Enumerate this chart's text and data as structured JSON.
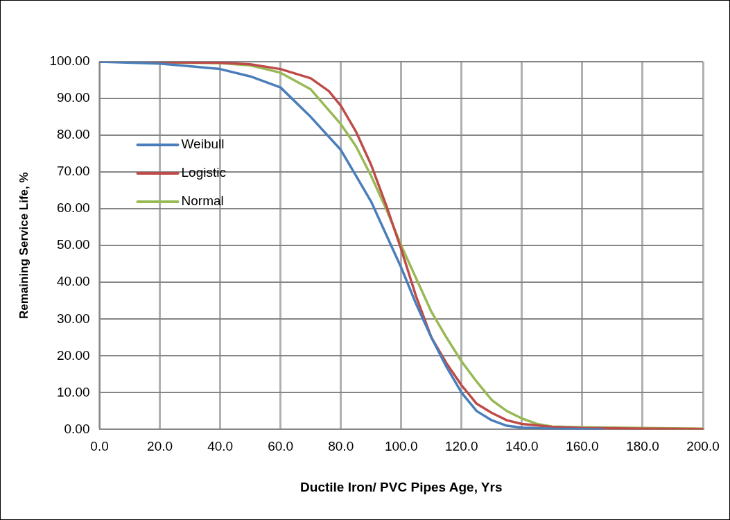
{
  "chart_data": {
    "type": "line",
    "xlabel": "Ductile Iron/ PVC Pipes Age, Yrs",
    "ylabel": "Remaining Service Life, %",
    "xlim": [
      0,
      200
    ],
    "ylim": [
      0,
      100
    ],
    "xticks": [
      {
        "value": 0,
        "label": "0.0"
      },
      {
        "value": 20,
        "label": "20.0"
      },
      {
        "value": 40,
        "label": "40.0"
      },
      {
        "value": 60,
        "label": "60.0"
      },
      {
        "value": 80,
        "label": "80.0"
      },
      {
        "value": 100,
        "label": "100.0"
      },
      {
        "value": 120,
        "label": "120.0"
      },
      {
        "value": 140,
        "label": "140.0"
      },
      {
        "value": 160,
        "label": "160.0"
      },
      {
        "value": 180,
        "label": "180.0"
      },
      {
        "value": 200,
        "label": "200.0"
      }
    ],
    "yticks": [
      {
        "value": 0,
        "label": "0.00"
      },
      {
        "value": 10,
        "label": "10.00"
      },
      {
        "value": 20,
        "label": "20.00"
      },
      {
        "value": 30,
        "label": "30.00"
      },
      {
        "value": 40,
        "label": "40.00"
      },
      {
        "value": 50,
        "label": "50.00"
      },
      {
        "value": 60,
        "label": "60.00"
      },
      {
        "value": 70,
        "label": "70.00"
      },
      {
        "value": 80,
        "label": "80.00"
      },
      {
        "value": 90,
        "label": "90.00"
      },
      {
        "value": 100,
        "label": "100.00"
      }
    ],
    "grid": true,
    "legend": "top left",
    "marker": "none",
    "line_style": "solid",
    "series": [
      {
        "name": "Weibull",
        "color": "#4a7ebb",
        "x": [
          0,
          20,
          40,
          50,
          60,
          70,
          80,
          85,
          90,
          95,
          100,
          105,
          110,
          115,
          120,
          125,
          130,
          135,
          140,
          150,
          160,
          167
        ],
        "values": [
          100,
          99.5,
          98,
          96,
          93,
          85,
          76,
          69,
          62,
          53,
          44,
          34,
          25,
          17,
          10,
          5,
          2.5,
          1,
          0.5,
          0.2,
          0.1,
          0
        ]
      },
      {
        "name": "Logistic",
        "color": "#be4b48",
        "x": [
          0,
          40,
          50,
          60,
          70,
          76,
          80,
          85,
          90,
          95,
          100,
          105,
          110,
          115,
          120,
          125,
          130,
          135,
          140,
          150,
          160,
          180,
          200
        ],
        "values": [
          100,
          99.7,
          99.3,
          98,
          95.5,
          92,
          88,
          81,
          72,
          61,
          49,
          36,
          25,
          18,
          12,
          7,
          4.5,
          2.5,
          1.5,
          0.7,
          0.4,
          0.2,
          0.1
        ]
      },
      {
        "name": "Normal",
        "color": "#98b954",
        "x": [
          0,
          40,
          50,
          60,
          70,
          80,
          85,
          90,
          95,
          100,
          105,
          110,
          115,
          120,
          125,
          130,
          135,
          140,
          145,
          150,
          160,
          180,
          200
        ],
        "values": [
          100,
          99.6,
          99,
          97,
          92.5,
          83,
          77,
          69,
          60,
          50,
          41,
          32,
          25,
          18.5,
          13,
          8,
          5,
          3,
          1.5,
          0.8,
          0.6,
          0.4,
          0.2
        ]
      }
    ]
  }
}
